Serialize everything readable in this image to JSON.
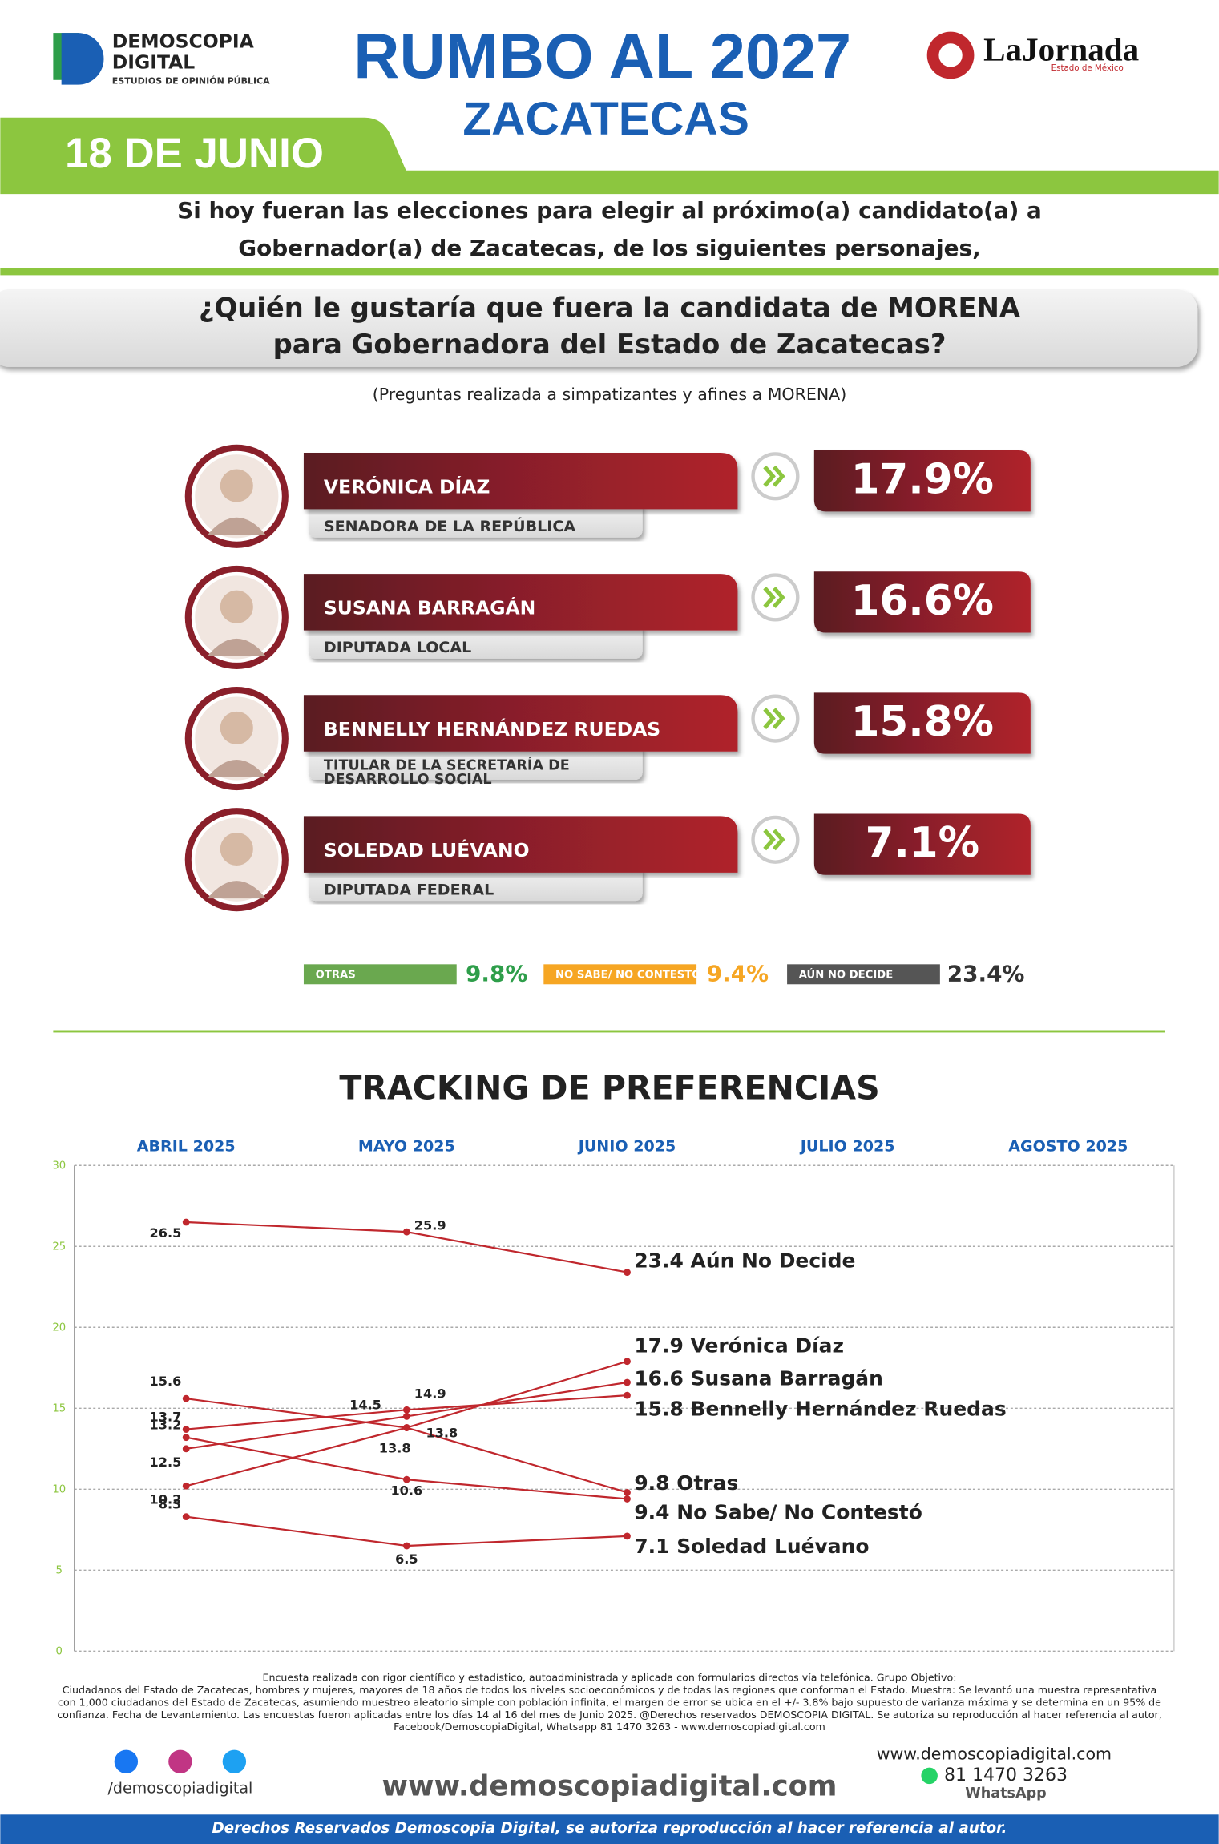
{
  "header": {
    "brand": "DEMOSCOPIA",
    "brand2": "DIGITAL",
    "brand_sub": "ESTUDIOS DE OPINIÓN PÚBLICA",
    "title": "RUMBO AL 2027",
    "subtitle": "ZACATECAS",
    "partner": "LaJornada",
    "partner_sub": "Estado de México",
    "date": "18 DE JUNIO"
  },
  "intro": [
    "Si hoy fueran las elecciones para elegir al próximo(a) candidato(a) a",
    "Gobernador(a) de Zacatecas, de los siguientes personajes,"
  ],
  "question": [
    "¿Quién le gustaría que fuera la candidata de MORENA",
    "para Gobernadora del Estado de Zacatecas?"
  ],
  "note": "(Preguntas realizada a simpatizantes y afines a MORENA)",
  "candidates": [
    {
      "name": "VERÓNICA DÍAZ",
      "role": [
        "SENADORA DE LA REPÚBLICA"
      ],
      "pct": "17.9%"
    },
    {
      "name": "SUSANA BARRAGÁN",
      "role": [
        "DIPUTADA LOCAL"
      ],
      "pct": "16.6%"
    },
    {
      "name": "BENNELLY HERNÁNDEZ RUEDAS",
      "role": [
        "TITULAR DE LA SECRETARÍA DE",
        "DESARROLLO SOCIAL"
      ],
      "pct": "15.8%"
    },
    {
      "name": "SOLEDAD LUÉVANO",
      "role": [
        "DIPUTADA FEDERAL"
      ],
      "pct": "7.1%"
    }
  ],
  "others": [
    {
      "label": "OTRAS",
      "pct": "9.8%",
      "color": "#6aa84f",
      "text": "#2e9e4a"
    },
    {
      "label": "NO SABE/ NO CONTESTÓ",
      "pct": "9.4%",
      "color": "#f6a623",
      "text": "#f6a623"
    },
    {
      "label": "AÚN NO DECIDE",
      "pct": "23.4%",
      "color": "#555555",
      "text": "#333333"
    }
  ],
  "chart_data": {
    "type": "line",
    "title": "TRACKING DE PREFERENCIAS",
    "categories": [
      "ABRIL 2025",
      "MAYO 2025",
      "JUNIO 2025",
      "JULIO 2025",
      "AGOSTO 2025"
    ],
    "ylim": [
      0,
      30
    ],
    "yticks": [
      0,
      5,
      10,
      15,
      20,
      25,
      30
    ],
    "grid": true,
    "series": [
      {
        "name": "Aún No Decide",
        "color": "#c0272d",
        "values": [
          26.5,
          25.9,
          23.4,
          null,
          null
        ]
      },
      {
        "name": "Verónica Díaz",
        "color": "#c0272d",
        "values": [
          10.2,
          13.8,
          17.9,
          null,
          null
        ]
      },
      {
        "name": "Susana Barragán",
        "color": "#c0272d",
        "values": [
          12.5,
          14.5,
          16.6,
          null,
          null
        ]
      },
      {
        "name": "Bennelly Hernández Ruedas",
        "color": "#c0272d",
        "values": [
          13.7,
          14.9,
          15.8,
          null,
          null
        ]
      },
      {
        "name": "Otras",
        "color": "#c0272d",
        "values": [
          15.6,
          13.8,
          9.8,
          null,
          null
        ]
      },
      {
        "name": "No Sabe/ No Contestó",
        "color": "#c0272d",
        "values": [
          13.2,
          10.6,
          9.4,
          null,
          null
        ]
      },
      {
        "name": "Soledad Luévano",
        "color": "#c0272d",
        "values": [
          8.3,
          6.5,
          7.1,
          null,
          null
        ]
      }
    ]
  },
  "footer": {
    "method": [
      "Encuesta realizada con rigor científico y estadístico, autoadministrada y aplicada con formularios directos vía telefónica. Grupo Objetivo:",
      "Ciudadanos del Estado de Zacatecas, hombres y mujeres, mayores de 18 años de todos los niveles socioeconómicos y de todas las regiones que conforman el Estado. Muestra: Se levantó una muestra representativa",
      "con 1,000 ciudadanos del Estado de Zacatecas, asumiendo muestreo aleatorio simple con población infinita, el margen de error se ubica en el +/- 3.8% bajo supuesto de varianza máxima y se determina en un 95% de",
      "confianza. Fecha de Levantamiento. Las encuestas fueron aplicadas entre los días 14 al 16 del mes de Junio 2025. @Derechos reservados DEMOSCOPIA DIGITAL. Se autoriza su reproducción al hacer referencia al autor,",
      "Facebook/DemoscopiaDigital, Whatsapp 81 1470 3263 - www.demoscopiadigital.com"
    ],
    "social": "/demoscopiadigital",
    "website": "www.demoscopiadigital.com",
    "site_small": "www.demoscopiadigital.com",
    "phone": "81 1470 3263",
    "whatsapp": "WhatsApp",
    "rights": "Derechos Reservados Demoscopia Digital, se autoriza reproducción al hacer referencia al autor."
  }
}
